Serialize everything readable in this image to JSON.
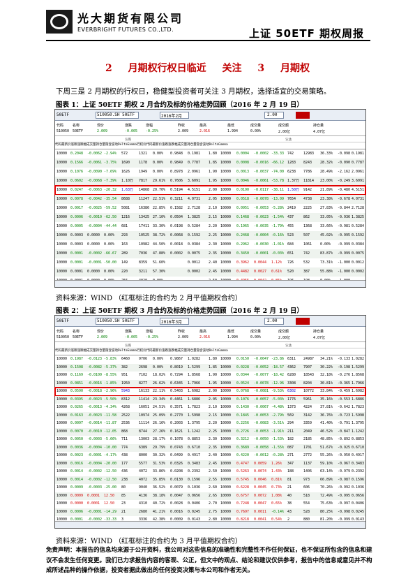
{
  "header": {
    "logo_cn": "光大期货有限公司",
    "logo_en": "EVERBRIGHT FUTURES CO.,LTD.",
    "title": "上证 50ETF 期权周报",
    "logo_icon": "everbright-logo-icon"
  },
  "headline": "2 月期权行权日临近 关注 3 月期权",
  "intro": "下周三是 2 月期权的行权日，稳健型投资者可关注 3 月期权，选择适宜的交易策略。",
  "fig1": {
    "title": "图表 1：上证 50ETF 期权 2 月合约及标的价格走势回顾（2016 年 2 月 19 日）",
    "source": "资料来源：WIND （红框标注的合约为 2 月平值期权合约）"
  },
  "fig2": {
    "title": "图表 2：上证 50ETF 期权 3 月合约及标的价格走势回顾（2016 年 2 月 19 日）",
    "source": "资料来源：WIND （红框标注的合约为 3 月平值期权合约）"
  },
  "disclaimer": "免责声明：本报告的信息均来源于公开资料，我公司对这些信息的准确性和完整性不作任何保证，也不保证所包含的信息和建议不会发生任何变更。我们已力求报告内容的客观、公正，但文中的观点、结论和建议仅供参考，报告中的信息或意见并不构成所述品种的操作依据，投资者据此做出的任何投资决策与本公司和作者无关。",
  "terminal": {
    "code": "50ETF",
    "code_full": "510050.SH 50ETF",
    "month1": "2016年2月",
    "month2": "2016年3月",
    "strike_field": "2.00",
    "call_label": "认购",
    "put_label": "认沽",
    "sum_labels": [
      "代码",
      "名称",
      "现价",
      "涨跌",
      "涨幅",
      "昨收",
      "最高",
      "最低",
      "成交量",
      "成交额",
      "持仓量"
    ],
    "sum_values": [
      "510050",
      "50ETF",
      "2.009",
      "-0.005",
      "-0.25%",
      "2.009",
      "2.016",
      "1.994",
      "0.00%",
      "2.00亿",
      "4.07亿"
    ],
    "call_head": [
      "代码",
      "最新价",
      "涨跌",
      "涨跌幅",
      "成交量",
      "持仓量",
      "隐含波动",
      "Delta",
      "Gamma"
    ],
    "put_head": [
      "行权价",
      "代码",
      "最新价",
      "涨跌",
      "涨跌幅",
      "成交量",
      "持仓量",
      "隐含波动",
      "Delta",
      "Gamma"
    ]
  },
  "table1": {
    "hl_index": 4,
    "rows": [
      [
        "10000",
        "0.2048",
        "-0.0062",
        "-2.94%",
        "572",
        "1321",
        "0.00%",
        "0.9848",
        "0.1981",
        "1.80",
        "10000",
        "0.0004",
        "-0.0002",
        "-33.33",
        "742",
        "12983",
        "36.33%",
        "-0.098",
        "0.1981"
      ],
      [
        "10000",
        "0.1566",
        "-0.0061",
        "-3.75%",
        "1690",
        "1178",
        "0.00%",
        "0.9849",
        "0.7787",
        "1.85",
        "10000",
        "0.0008",
        "-0.0016",
        "-66.12",
        "1283",
        "8243",
        "28.32%",
        "-0.090",
        "0.7787"
      ],
      [
        "10000",
        "0.1076",
        "-0.0090",
        "-7.69%",
        "1626",
        "1949",
        "0.00%",
        "0.8978",
        "2.0961",
        "1.90",
        "10000",
        "0.0013",
        "-0.0037",
        "-74.00",
        "6238",
        "7786",
        "28.49%",
        "-2.162",
        "2.0961"
      ],
      [
        "10000",
        "0.0602",
        "-0.0068",
        "-7.39%",
        "1.10万",
        "7817",
        "29.61%",
        "0.7606",
        "3.6091",
        "1.95",
        "10000",
        "0.0046",
        "-0.0061",
        "-53.78",
        "1.37万",
        "11814",
        "23.00%",
        "-0.249",
        "3.6091"
      ],
      [
        "10000",
        "0.0247",
        "-0.0063",
        "-20.32",
        "1.63万",
        "14868",
        "20.70%",
        "0.5194",
        "4.5151",
        "2.00",
        "10000",
        "0.0190",
        "-0.0117",
        "-38.11",
        "1.50万",
        "9142",
        "21.89%",
        "-0.480",
        "4.5151"
      ],
      [
        "10000",
        "0.0078",
        "-0.0042",
        "-35.54",
        "8688",
        "11247",
        "22.51%",
        "0.3211",
        "4.0731",
        "2.05",
        "10000",
        "0.0518",
        "-0.0078",
        "-13.09",
        "7654",
        "4738",
        "23.38%",
        "-0.678",
        "4.0731"
      ],
      [
        "10000",
        "0.0017",
        "-0.0025",
        "-59.52",
        "5081",
        "16386",
        "22.85%",
        "0.1582",
        "2.7128",
        "2.10",
        "10000",
        "0.0951",
        "-0.0053",
        "-5.28%",
        "2419",
        "2225",
        "27.83%",
        "-0.844",
        "2.7128"
      ],
      [
        "10000",
        "0.0006",
        "-0.0010",
        "-62.50",
        "1216",
        "13425",
        "27.10%",
        "0.0504",
        "1.3825",
        "2.15",
        "10000",
        "0.1468",
        "-0.0023",
        "-1.54%",
        "437",
        "862",
        "33.05%",
        "-0.936",
        "1.3825"
      ],
      [
        "10000",
        "0.0005",
        "-0.0004",
        "-44.44",
        "681",
        "17411",
        "33.30%",
        "0.0198",
        "0.5284",
        "2.20",
        "10000",
        "0.1965",
        "-0.0035",
        "-1.79%",
        "455",
        "1368",
        "33.66%",
        "-0.981",
        "0.5284"
      ],
      [
        "10000",
        "0.0003",
        "0.0000",
        "0.00%",
        "293",
        "10525",
        "38.72%",
        "0.0068",
        "0.1592",
        "2.25",
        "10000",
        "0.2468",
        "-0.0004",
        "-0.16%",
        "523",
        "507",
        "45.02%",
        "-0.995",
        "0.1592"
      ],
      [
        "10000",
        "0.0003",
        "0.0000",
        "0.00%",
        "163",
        "10982",
        "44.50%",
        "0.0018",
        "0.0384",
        "2.30",
        "10000",
        "0.2962",
        "-0.0030",
        "-1.01%",
        "684",
        "1061",
        "0.00%",
        "-0.999",
        "0.0384"
      ],
      [
        "10000",
        "0.0001",
        "-0.0002",
        "-66.67",
        "289",
        "7036",
        "47.88%",
        "0.0002",
        "0.0075",
        "2.35",
        "10000",
        "0.3450",
        "-0.0001",
        "-0.03%",
        "651",
        "742",
        "83.87%",
        "-0.999",
        "0.0075"
      ],
      [
        "10000",
        "0.0001",
        "-0.0001",
        "-50.00",
        "149",
        "8359",
        "51.60%",
        "",
        "0.0012",
        "2.40",
        "10000",
        "0.3962",
        "0.0044",
        "1.12%",
        "726",
        "532",
        "73.31%",
        "-1.000",
        "0.0012"
      ],
      [
        "10000",
        "0.0001",
        "0.0000",
        "0.00%",
        "220",
        "3211",
        "57.30%",
        "",
        "0.0002",
        "2.45",
        "10000",
        "0.4482",
        "0.0027",
        "0.61%",
        "520",
        "387",
        "55.88%",
        "-1.000",
        "0.0002"
      ],
      [
        "10000",
        "0.0001",
        "0.0000",
        "0.00%",
        "256",
        "4020",
        "0.00%",
        "",
        "",
        "2.50",
        "10000",
        "0.4955",
        "0.0042",
        "0.85%",
        "196",
        "198",
        "0.00%",
        "-1.000",
        ""
      ]
    ]
  },
  "table2": {
    "hl_index": 4,
    "rows": [
      [
        "10000",
        "0.1987",
        "-0.0123",
        "-5.83%",
        "6460",
        "9706",
        "0.00%",
        "0.9867",
        "1.0282",
        "1.80",
        "10000",
        "0.0150",
        "-0.0047",
        "-23.86",
        "6311",
        "24987",
        "34.21%",
        "-0.133",
        "1.0282"
      ],
      [
        "10000",
        "0.1508",
        "-0.0082",
        "-5.37%",
        "382",
        "2698",
        "0.00%",
        "0.8019",
        "1.5299",
        "1.85",
        "10000",
        "0.0228",
        "-0.0052",
        "-18.57",
        "4362",
        "7907",
        "30.22%",
        "-0.198",
        "1.5299"
      ],
      [
        "10000",
        "0.1169",
        "-0.0100",
        "-8.55%",
        "951",
        "7102",
        "18.02%",
        "0.7294",
        "1.8568",
        "1.90",
        "10000",
        "0.0344",
        "-0.0077",
        "-18.42",
        "6280",
        "18543",
        "32.18%",
        "-0.276",
        "1.8568"
      ],
      [
        "10000",
        "0.0851",
        "-0.0016",
        "-1.85%",
        "1950",
        "8277",
        "26.62%",
        "0.6345",
        "1.7966",
        "1.95",
        "10000",
        "0.0524",
        "-0.0078",
        "-12.96",
        "3308",
        "8204",
        "30.81%",
        "-0.365",
        "1.7966"
      ],
      [
        "10000",
        "0.0590",
        "-0.0018",
        "-2.96%",
        "5943",
        "16133",
        "22.11%",
        "0.5403",
        "1.6982",
        "2.00",
        "10000",
        "0.0768",
        "-0.0081",
        "-9.53%",
        "6302",
        "10772",
        "33.84%",
        "-0.459",
        "1.6982"
      ],
      [
        "10000",
        "0.0395",
        "-0.0023",
        "-5.50%",
        "8312",
        "11414",
        "23.34%",
        "0.4461",
        "1.6886",
        "2.05",
        "10000",
        "0.1076",
        "-0.0057",
        "-5.03%",
        "1776",
        "5961",
        "35.16%",
        "-0.553",
        "1.6886"
      ],
      [
        "10000",
        "0.0265",
        "-0.0013",
        "-4.34%",
        "4268",
        "16051",
        "24.51%",
        "0.3571",
        "1.7823",
        "2.10",
        "10000",
        "0.1430",
        "-0.0067",
        "-4.48%",
        "1373",
        "4224",
        "37.81%",
        "-0.642",
        "1.7823"
      ],
      [
        "10000",
        "0.0163",
        "-0.0023",
        "-11.58",
        "2522",
        "10974",
        "25.09%",
        "0.2770",
        "1.5998",
        "2.15",
        "10000",
        "0.1845",
        "-0.0053",
        "-2.79%",
        "569",
        "3142",
        "36.76%",
        "-0.723",
        "1.5998"
      ],
      [
        "10000",
        "0.0097",
        "-0.0014",
        "-11.87",
        "2536",
        "11114",
        "26.16%",
        "0.2003",
        "1.3795",
        "2.20",
        "10000",
        "0.2256",
        "-0.0083",
        "-3.51%",
        "294",
        "3359",
        "41.40%",
        "-0.791",
        "1.3795"
      ],
      [
        "10000",
        "0.0070",
        "-0.0010",
        "-12.05",
        "868",
        "8744",
        "27.26%",
        "0.1621",
        "1.1242",
        "2.25",
        "10000",
        "0.2726",
        "-0.0053",
        "-1.91%",
        "211",
        "2049",
        "46.52%",
        "-0.847",
        "1.1242"
      ],
      [
        "10000",
        "0.0050",
        "-0.0003",
        "-5.66%",
        "711",
        "13003",
        "28.17%",
        "0.1078",
        "0.8853",
        "2.30",
        "10000",
        "0.3212",
        "-0.0050",
        "-1.53%",
        "182",
        "2185",
        "48.85%",
        "-0.892",
        "0.8853"
      ],
      [
        "10000",
        "0.0036",
        "-0.0004",
        "-10.00",
        "774",
        "6389",
        "29.79%",
        "0.0743",
        "0.6710",
        "2.35",
        "10000",
        "0.3689",
        "-0.0058",
        "-1.55%",
        "087",
        "1701",
        "51.67%",
        "-0.925",
        "0.6710"
      ],
      [
        "10000",
        "0.0023",
        "-0.0001",
        "-4.17%",
        "438",
        "8000",
        "30.32%",
        "0.0499",
        "0.4917",
        "2.40",
        "10000",
        "0.4220",
        "-0.0012",
        "-0.28%",
        "271",
        "2772",
        "55.26%",
        "-0.950",
        "0.4917"
      ],
      [
        "10000",
        "0.0016",
        "-0.0004",
        "-20.00",
        "177",
        "5577",
        "31.53%",
        "0.0326",
        "0.3483",
        "2.45",
        "10000",
        "0.4747",
        "0.0059",
        "1.26%",
        "347",
        "1137",
        "59.10%",
        "-0.967",
        "0.3483"
      ],
      [
        "10000",
        "0.0014",
        "-0.0002",
        "-12.50",
        "436",
        "4072",
        "33.86%",
        "0.0208",
        "0.2392",
        "2.50",
        "10000",
        "0.5263",
        "0.0074",
        "1.43%",
        "188",
        "1406",
        "63.14%",
        "-0.979",
        "0.2392"
      ],
      [
        "10000",
        "0.0014",
        "-0.0002",
        "-12.50",
        "238",
        "4072",
        "35.85%",
        "0.0130",
        "0.1596",
        "2.55",
        "10000",
        "0.5745",
        "0.0046",
        "0.81%",
        "81",
        "973",
        "66.89%",
        "-0.987",
        "0.1596"
      ],
      [
        "10000",
        "0.0009",
        "-0.0003",
        "-25.00",
        "80",
        "9040",
        "36.52%",
        "0.0079",
        "0.1036",
        "2.60",
        "10000",
        "0.6228",
        "0.0045",
        "0.73%",
        "21",
        "606",
        "70.26%",
        "-0.992",
        "0.1036"
      ],
      [
        "10000",
        "0.0009",
        "0.0001",
        "12.50",
        "85",
        "4136",
        "38.18%",
        "0.0047",
        "0.0656",
        "2.65",
        "10000",
        "0.6757",
        "0.0072",
        "1.08%",
        "40",
        "518",
        "72.49%",
        "-0.995",
        "0.0656"
      ],
      [
        "10000",
        "0.0000",
        "0.0001",
        "12.50",
        "23",
        "4310",
        "40.72%",
        "0.0028",
        "0.0406",
        "2.70",
        "10000",
        "0.7248",
        "0.0047",
        "0.65%",
        "38",
        "554",
        "75.63%",
        "-0.997",
        "0.0406"
      ],
      [
        "10000",
        "0.0006",
        "-0.0001",
        "-14.29",
        "21",
        "2680",
        "41.21%",
        "0.0016",
        "0.0245",
        "2.75",
        "10000",
        "0.7697",
        "0.0011",
        "-0.14%",
        "43",
        "528",
        "80.25%",
        "-0.998",
        "0.0245"
      ],
      [
        "10000",
        "0.0001",
        "-0.0002",
        "-33.33",
        "3",
        "3336",
        "42.38%",
        "0.0009",
        "0.0143",
        "2.80",
        "10000",
        "0.8218",
        "0.0041",
        "0.54%",
        "2",
        "880",
        "81.20%",
        "-0.999",
        "0.0143"
      ]
    ]
  },
  "colors": {
    "headline_red": "#c00000",
    "highlight_box": "#e00000",
    "loss_green": "#008000",
    "gain_red": "#d40000",
    "atm_volume_blue": "#0000c8"
  }
}
